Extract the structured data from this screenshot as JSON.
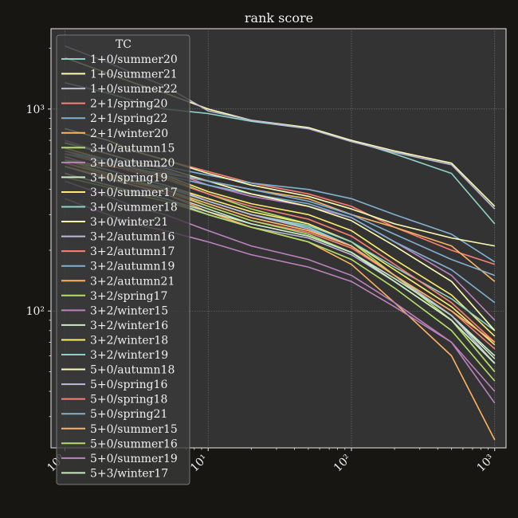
{
  "chart_data": {
    "type": "line",
    "title": "rank score",
    "xlabel": "",
    "ylabel": "",
    "xscale": "log",
    "yscale": "log",
    "xlim": [
      0.8,
      1200
    ],
    "ylim": [
      21,
      2500
    ],
    "grid": true,
    "legend_title": "TC",
    "legend_position": "top-left",
    "x_ticks": [
      {
        "value": 1,
        "label": "10⁰"
      },
      {
        "value": 10,
        "label": "10¹"
      },
      {
        "value": 100,
        "label": "10²"
      },
      {
        "value": 1000,
        "label": "10³"
      }
    ],
    "y_ticks": [
      {
        "value": 100,
        "label": "10²"
      },
      {
        "value": 1000,
        "label": "10³"
      }
    ],
    "x": [
      1,
      2,
      3,
      5,
      10,
      20,
      50,
      100,
      200,
      500,
      1000
    ],
    "series": [
      {
        "name": "1+0/summer20",
        "color": "#8dd3c7",
        "values": [
          1350,
          1200,
          1100,
          1000,
          950,
          870,
          800,
          700,
          600,
          480,
          270
        ]
      },
      {
        "name": "1+0/summer21",
        "color": "#feffb3",
        "values": [
          1800,
          1500,
          1350,
          1200,
          1000,
          880,
          810,
          700,
          620,
          540,
          330
        ]
      },
      {
        "name": "1+0/summer22",
        "color": "#bfbbd9",
        "values": [
          2050,
          1700,
          1500,
          1300,
          980,
          880,
          800,
          690,
          610,
          530,
          320
        ]
      },
      {
        "name": "2+1/spring20",
        "color": "#fa8174",
        "values": [
          800,
          700,
          620,
          560,
          490,
          430,
          380,
          330,
          260,
          200,
          170
        ]
      },
      {
        "name": "2+1/spring22",
        "color": "#81b1d2",
        "values": [
          600,
          560,
          540,
          520,
          470,
          430,
          400,
          360,
          300,
          240,
          175
        ]
      },
      {
        "name": "2+1/winter20",
        "color": "#fdb462",
        "values": [
          560,
          520,
          500,
          480,
          440,
          400,
          360,
          300,
          260,
          210,
          140
        ]
      },
      {
        "name": "3+0/autumn15",
        "color": "#b3de69",
        "values": [
          620,
          540,
          500,
          460,
          380,
          320,
          270,
          220,
          150,
          90,
          50
        ]
      },
      {
        "name": "3+0/autumn20",
        "color": "#bc82bd",
        "values": [
          700,
          600,
          550,
          500,
          420,
          370,
          330,
          290,
          220,
          150,
          90
        ]
      },
      {
        "name": "3+0/spring19",
        "color": "#ccebc4",
        "values": [
          560,
          480,
          440,
          400,
          340,
          290,
          250,
          210,
          150,
          95,
          60
        ]
      },
      {
        "name": "3+0/summer17",
        "color": "#ffed6f",
        "values": [
          640,
          560,
          510,
          470,
          390,
          340,
          300,
          250,
          180,
          120,
          75
        ]
      },
      {
        "name": "3+0/summer18",
        "color": "#8dd3c7",
        "values": [
          580,
          500,
          460,
          420,
          350,
          300,
          260,
          210,
          150,
          95,
          55
        ]
      },
      {
        "name": "3+0/winter21",
        "color": "#feffb3",
        "values": [
          800,
          700,
          620,
          560,
          480,
          420,
          370,
          320,
          270,
          230,
          210
        ]
      },
      {
        "name": "3+2/autumn16",
        "color": "#bfbbd9",
        "values": [
          480,
          420,
          390,
          360,
          300,
          260,
          230,
          190,
          140,
          90,
          55
        ]
      },
      {
        "name": "3+2/autumn17",
        "color": "#fa8174",
        "values": [
          520,
          460,
          420,
          390,
          330,
          280,
          245,
          205,
          150,
          100,
          65
        ]
      },
      {
        "name": "3+2/autumn19",
        "color": "#81b1d2",
        "values": [
          600,
          540,
          500,
          470,
          420,
          380,
          340,
          290,
          220,
          160,
          110
        ]
      },
      {
        "name": "3+2/autumn21",
        "color": "#fdb462",
        "values": [
          520,
          460,
          420,
          380,
          310,
          260,
          220,
          170,
          110,
          60,
          23
        ]
      },
      {
        "name": "3+2/spring17",
        "color": "#b3de69",
        "values": [
          460,
          410,
          380,
          350,
          300,
          260,
          220,
          180,
          130,
          80,
          45
        ]
      },
      {
        "name": "3+2/winter15",
        "color": "#bc82bd",
        "values": [
          440,
          370,
          330,
          300,
          250,
          210,
          180,
          150,
          110,
          70,
          35
        ]
      },
      {
        "name": "3+2/winter16",
        "color": "#ccebc4",
        "values": [
          480,
          420,
          390,
          360,
          310,
          270,
          235,
          195,
          145,
          95,
          58
        ]
      },
      {
        "name": "3+2/winter18",
        "color": "#ffed6f",
        "values": [
          560,
          500,
          460,
          420,
          360,
          310,
          270,
          220,
          160,
          105,
          68
        ]
      },
      {
        "name": "3+2/winter19",
        "color": "#8dd3c7",
        "values": [
          540,
          480,
          440,
          410,
          350,
          300,
          265,
          220,
          165,
          115,
          80
        ]
      },
      {
        "name": "5+0/autumn18",
        "color": "#feffb3",
        "values": [
          680,
          600,
          550,
          510,
          440,
          380,
          330,
          280,
          210,
          140,
          80
        ]
      },
      {
        "name": "5+0/spring16",
        "color": "#bfbbd9",
        "values": [
          580,
          500,
          460,
          420,
          350,
          300,
          255,
          210,
          150,
          95,
          55
        ]
      },
      {
        "name": "5+0/spring18",
        "color": "#fa8174",
        "values": [
          600,
          530,
          490,
          450,
          380,
          330,
          285,
          235,
          170,
          110,
          70
        ]
      },
      {
        "name": "5+0/spring21",
        "color": "#81b1d2",
        "values": [
          620,
          560,
          520,
          490,
          440,
          400,
          350,
          300,
          240,
          180,
          150
        ]
      },
      {
        "name": "5+0/summer15",
        "color": "#fdb462",
        "values": [
          540,
          470,
          430,
          400,
          340,
          290,
          250,
          210,
          150,
          100,
          70
        ]
      },
      {
        "name": "5+0/summer16",
        "color": "#b3de69",
        "values": [
          560,
          480,
          440,
          400,
          330,
          280,
          240,
          195,
          140,
          90,
          50
        ]
      },
      {
        "name": "5+0/summer19",
        "color": "#bc82bd",
        "values": [
          360,
          300,
          270,
          250,
          220,
          190,
          165,
          140,
          105,
          70,
          40
        ]
      },
      {
        "name": "5+3/winter17",
        "color": "#ccebc4",
        "values": [
          520,
          450,
          420,
          380,
          320,
          270,
          235,
          195,
          140,
          90,
          55
        ]
      }
    ]
  }
}
